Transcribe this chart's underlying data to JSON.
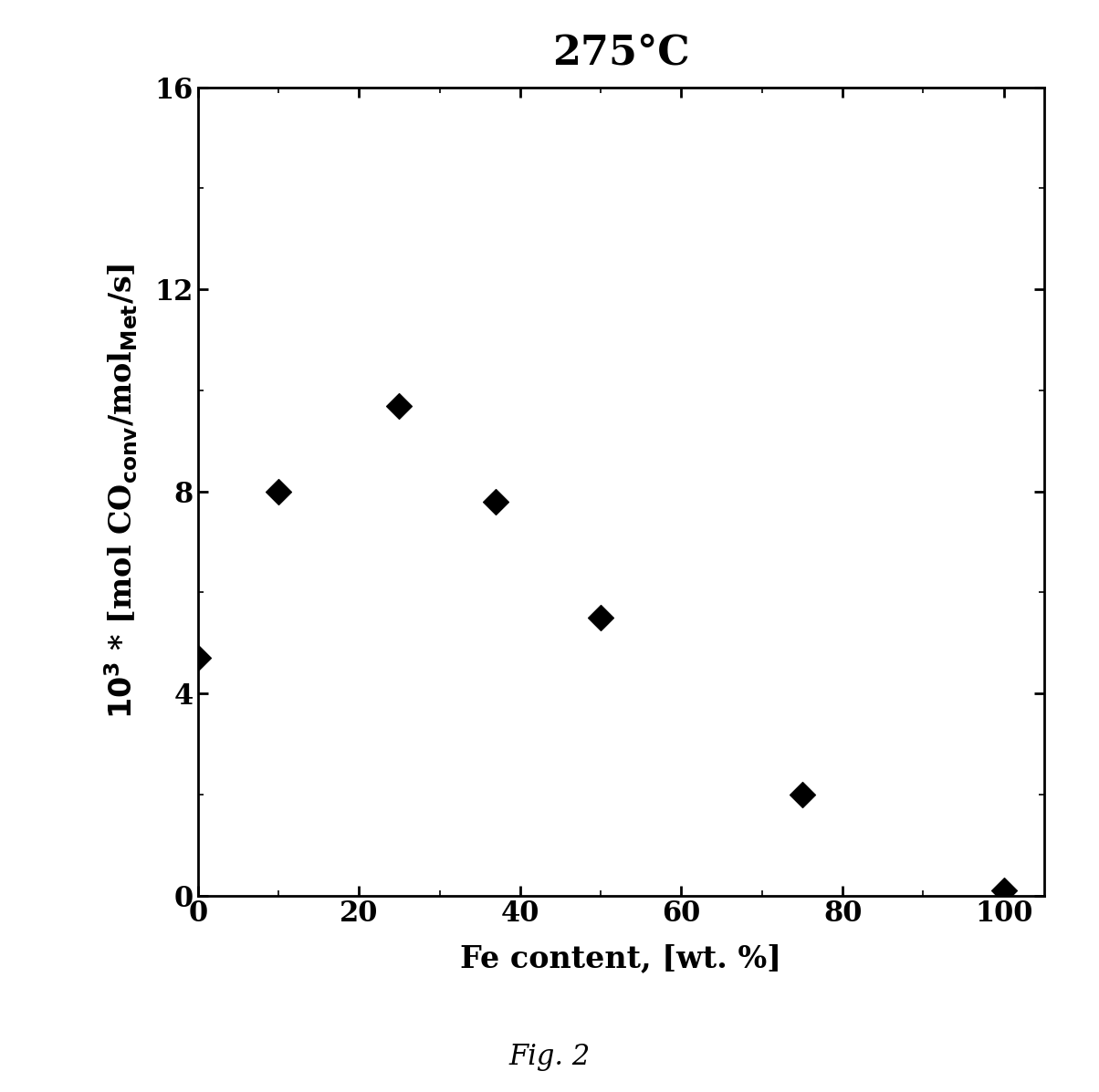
{
  "title": "275°C",
  "xlabel": "Fe content, [wt. %]",
  "x_data": [
    0,
    10,
    25,
    37,
    50,
    75,
    100
  ],
  "y_data": [
    4.7,
    8.0,
    9.7,
    7.8,
    5.5,
    2.0,
    0.1
  ],
  "xlim": [
    0,
    105
  ],
  "ylim": [
    0,
    16
  ],
  "xticks": [
    0,
    20,
    40,
    60,
    80,
    100
  ],
  "yticks": [
    0,
    4,
    8,
    12,
    16
  ],
  "marker_color": "#000000",
  "marker_size": 200,
  "background_color": "#ffffff",
  "fig_caption": "Fig. 2",
  "title_fontsize": 32,
  "label_fontsize": 24,
  "tick_fontsize": 22,
  "caption_fontsize": 22
}
